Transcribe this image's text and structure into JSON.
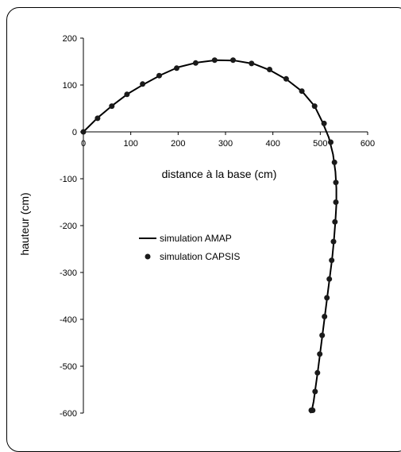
{
  "chart_data": {
    "type": "scatter",
    "title": "",
    "xlabel": "distance à la base (cm)",
    "ylabel": "hauteur (cm)",
    "xlim": [
      0,
      600
    ],
    "ylim": [
      -600,
      200
    ],
    "x_ticks": [
      0,
      100,
      200,
      300,
      400,
      500,
      600
    ],
    "y_ticks": [
      200,
      100,
      0,
      -100,
      -200,
      -300,
      -400,
      -500,
      -600
    ],
    "grid": false,
    "legend_position": "left-middle",
    "series": [
      {
        "name": "simulation AMAP",
        "style": "line",
        "color": "#000000",
        "x": [
          0,
          30,
          62,
          95,
          130,
          165,
          200,
          240,
          280,
          320,
          360,
          395,
          430,
          462,
          488,
          505,
          518,
          527,
          532,
          534,
          534,
          532,
          529,
          525,
          520,
          515,
          510,
          505,
          500,
          495,
          490,
          486,
          482,
          479
        ],
        "y": [
          0,
          30,
          57,
          82,
          103,
          122,
          138,
          148,
          153,
          152,
          145,
          131,
          111,
          86,
          55,
          20,
          -12,
          -48,
          -85,
          -120,
          -155,
          -190,
          -230,
          -270,
          -310,
          -350,
          -390,
          -430,
          -470,
          -510,
          -545,
          -575,
          -595,
          -600
        ]
      },
      {
        "name": "simulation CAPSIS",
        "style": "markers",
        "color": "#1a1a1a",
        "x": [
          0,
          30,
          60,
          92,
          125,
          160,
          197,
          237,
          277,
          316,
          355,
          393,
          428,
          461,
          488,
          508,
          522,
          530,
          533,
          533,
          531,
          528,
          524,
          519,
          514,
          509,
          504,
          499,
          494,
          489,
          484,
          481
        ],
        "y": [
          0,
          29,
          55,
          80,
          102,
          120,
          136,
          147,
          153,
          153,
          146,
          133,
          113,
          87,
          55,
          18,
          -22,
          -65,
          -108,
          -150,
          -192,
          -234,
          -274,
          -314,
          -354,
          -394,
          -434,
          -474,
          -514,
          -554,
          -594,
          -594
        ]
      }
    ]
  }
}
